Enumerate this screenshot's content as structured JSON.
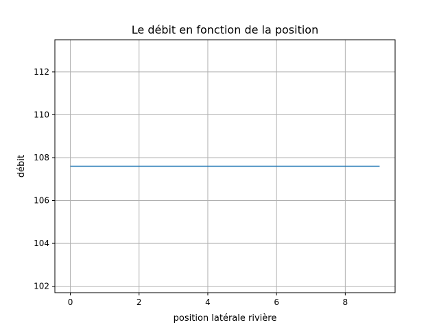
{
  "chart_data": {
    "type": "line",
    "title": "Le débit en fonction de la position",
    "xlabel": "position latérale rivière",
    "ylabel": "débit",
    "xlim": [
      -0.45,
      9.45
    ],
    "ylim": [
      101.7,
      113.5
    ],
    "xticks": [
      0,
      2,
      4,
      6,
      8
    ],
    "yticks": [
      102,
      104,
      106,
      108,
      110,
      112
    ],
    "grid": true,
    "series": [
      {
        "color": "#1f77b4",
        "x": [
          0,
          1,
          2,
          3,
          4,
          5,
          6,
          7,
          8,
          9
        ],
        "y": [
          107.6,
          107.6,
          107.6,
          107.6,
          107.6,
          107.6,
          107.6,
          107.6,
          107.6,
          107.6
        ]
      }
    ]
  }
}
